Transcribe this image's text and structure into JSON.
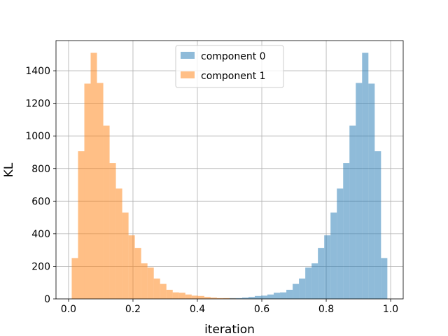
{
  "chart_data": {
    "type": "bar",
    "title": "",
    "xlabel": "iteration",
    "ylabel": "KL",
    "xlim": [
      -0.039,
      1.039
    ],
    "ylim": [
      0,
      1585
    ],
    "x_ticks": [
      0.0,
      0.2,
      0.4,
      0.6,
      0.8,
      1.0
    ],
    "x_tick_labels": [
      "0.0",
      "0.2",
      "0.4",
      "0.6",
      "0.8",
      "1.0"
    ],
    "y_ticks": [
      0,
      200,
      400,
      600,
      800,
      1000,
      1200,
      1400
    ],
    "y_tick_labels": [
      "0",
      "200",
      "400",
      "600",
      "800",
      "1000",
      "1200",
      "1400"
    ],
    "grid": true,
    "legend": "upper-center",
    "bin_edges": [
      0.0098,
      0.0294,
      0.049,
      0.0686,
      0.0882,
      0.1078,
      0.1274,
      0.147,
      0.1666,
      0.1862,
      0.2058,
      0.2254,
      0.245,
      0.2646,
      0.2842,
      0.3038,
      0.3234,
      0.343,
      0.3626,
      0.3822,
      0.4018,
      0.4214,
      0.441,
      0.4606,
      0.4802,
      0.4998,
      0.5194,
      0.539,
      0.5586,
      0.5782,
      0.5978,
      0.6174,
      0.637,
      0.6566,
      0.6762,
      0.6958,
      0.7154,
      0.735,
      0.7546,
      0.7742,
      0.7938,
      0.8134,
      0.833,
      0.8526,
      0.8722,
      0.8918,
      0.9114,
      0.931,
      0.9506,
      0.9702,
      0.9898
    ],
    "series": [
      {
        "name": "component 0",
        "color": "#1f77b4",
        "alpha": 0.5,
        "values": [
          0,
          0,
          0,
          0,
          0,
          0,
          0,
          0,
          0,
          0,
          0,
          0,
          0,
          0,
          0,
          0,
          0,
          0,
          0,
          0,
          0,
          0,
          0,
          1,
          3,
          5,
          5,
          8,
          12,
          18,
          20,
          27,
          38,
          40,
          56,
          92,
          125,
          192,
          218,
          313,
          390,
          530,
          677,
          833,
          1063,
          1325,
          1510,
          1321,
          906,
          250
        ]
      },
      {
        "name": "component 1",
        "color": "#ff7f0e",
        "alpha": 0.5,
        "values": [
          250,
          906,
          1321,
          1510,
          1325,
          1063,
          833,
          677,
          530,
          390,
          313,
          218,
          192,
          125,
          92,
          56,
          40,
          38,
          27,
          20,
          18,
          12,
          8,
          5,
          5,
          3,
          1,
          0,
          0,
          0,
          0,
          0,
          0,
          0,
          0,
          0,
          0,
          0,
          0,
          0,
          0,
          0,
          0,
          0,
          0,
          0,
          0,
          0,
          0,
          0
        ]
      }
    ]
  }
}
